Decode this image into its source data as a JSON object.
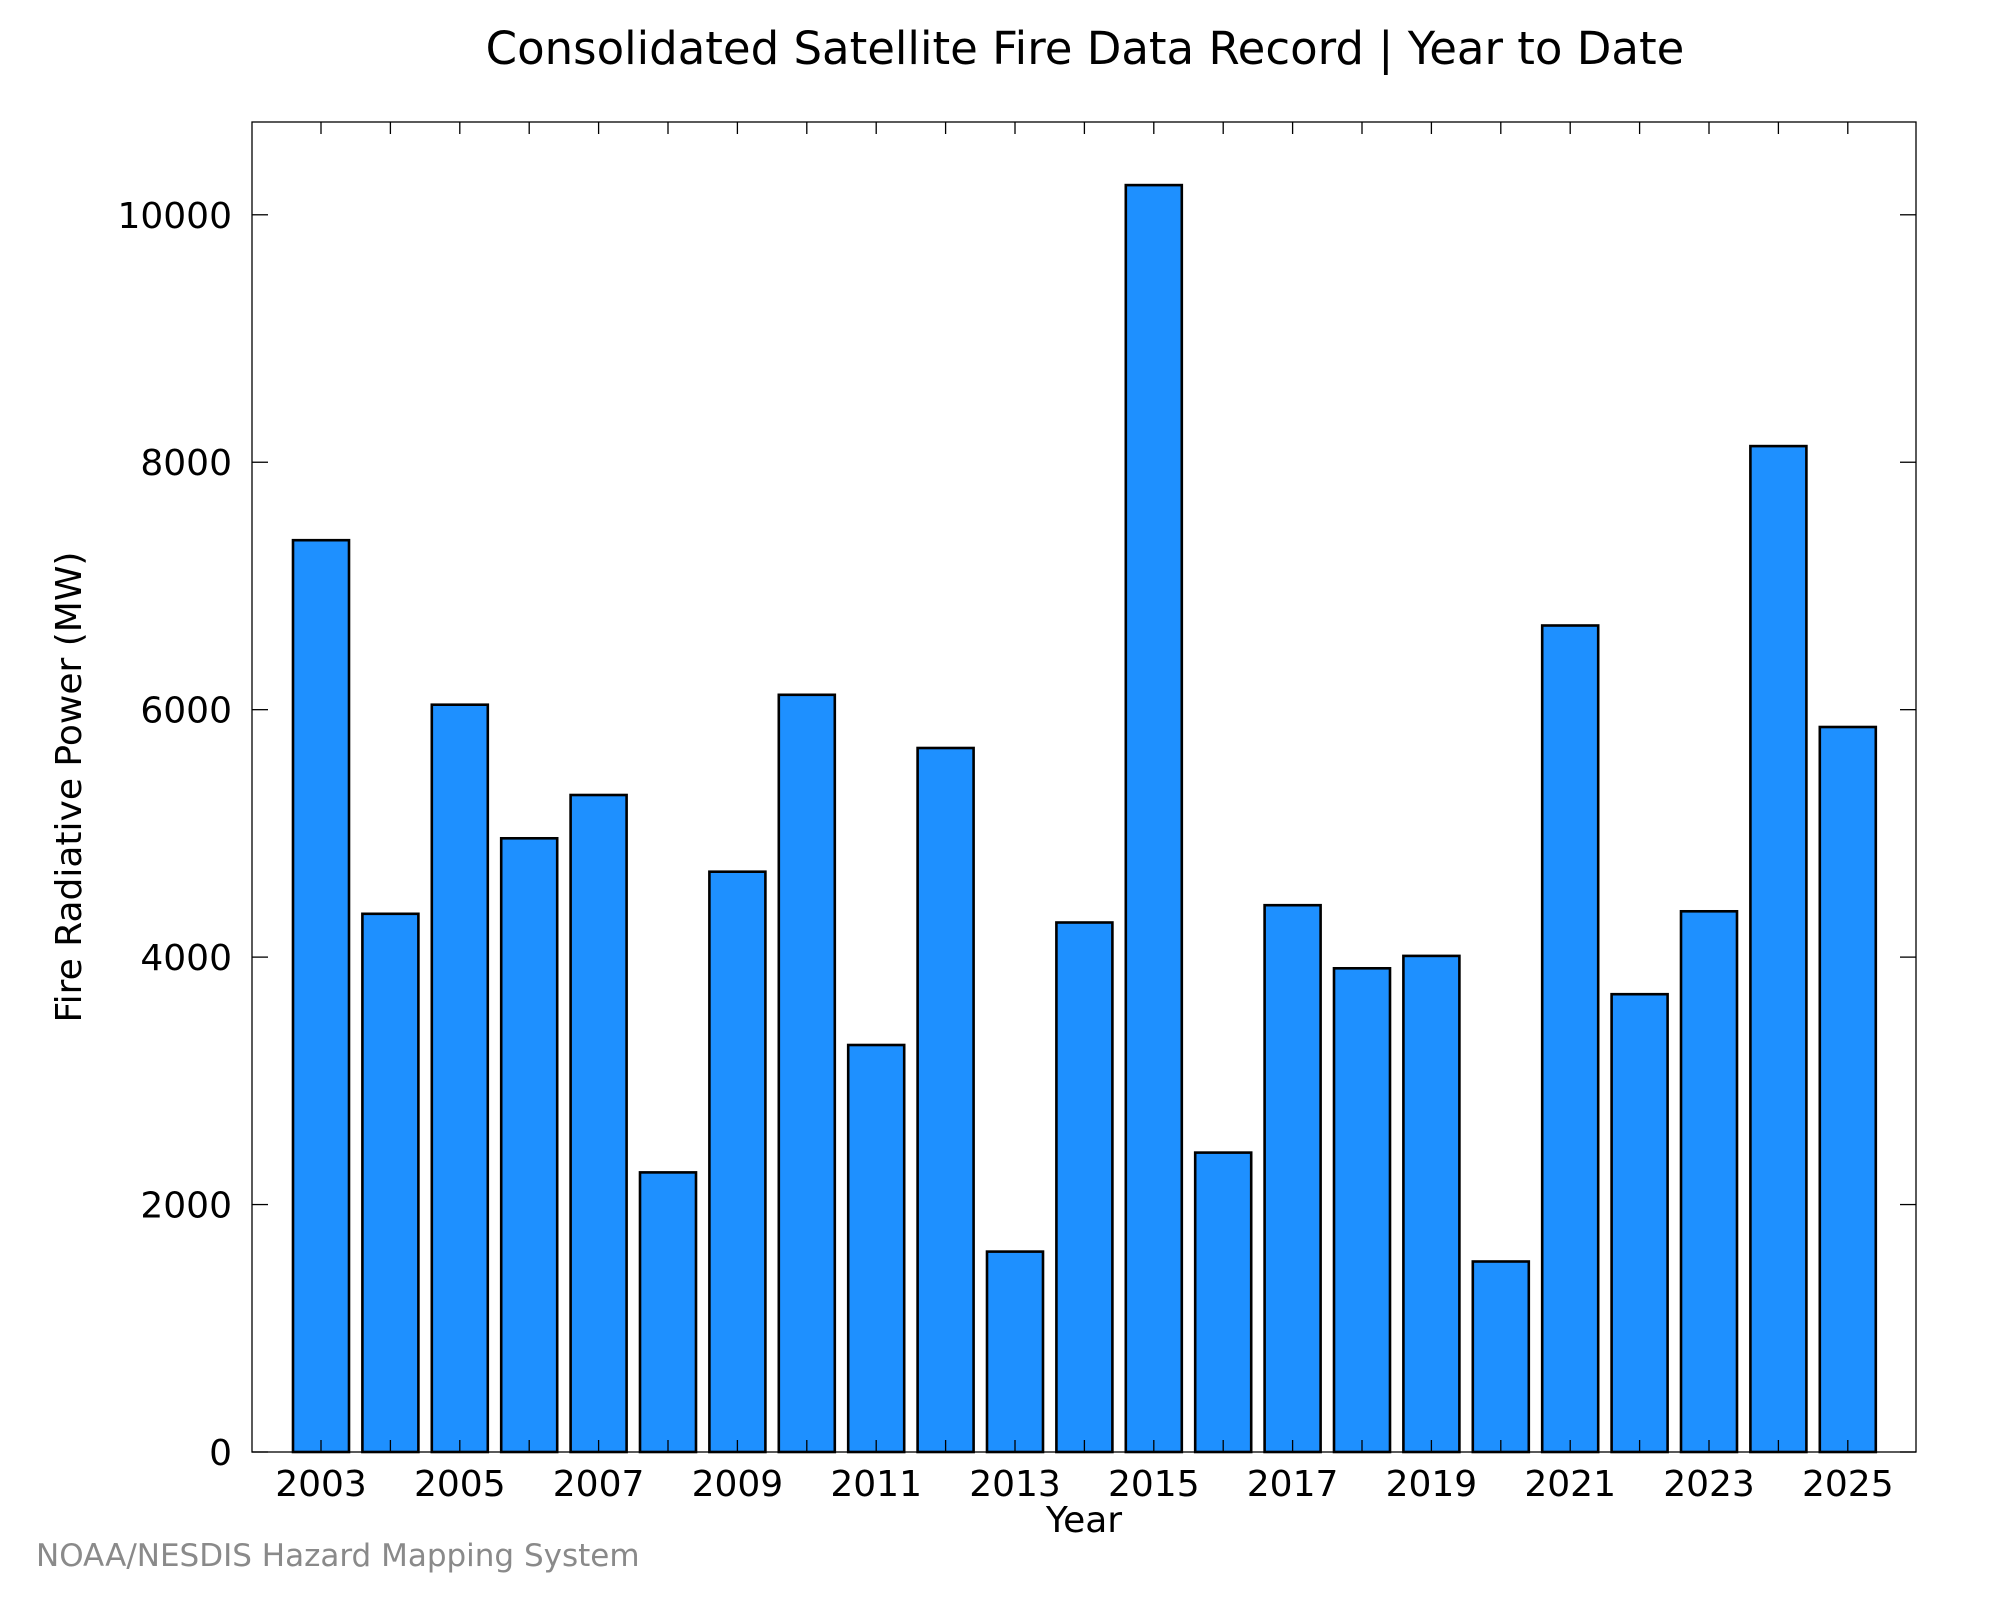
{
  "chart_data": {
    "type": "bar",
    "title": "Consolidated Satellite Fire Data Record | Year to Date",
    "xlabel": "Year",
    "ylabel": "Fire Radiative Power (MW)",
    "ylim": [
      0,
      10750
    ],
    "yticks": [
      0,
      2000,
      4000,
      6000,
      8000,
      10000
    ],
    "xtick_labels": [
      "2003",
      "2005",
      "2007",
      "2009",
      "2011",
      "2013",
      "2015",
      "2017",
      "2019",
      "2021",
      "2023",
      "2025"
    ],
    "categories": [
      "2003",
      "2004",
      "2005",
      "2006",
      "2007",
      "2008",
      "2009",
      "2010",
      "2011",
      "2012",
      "2013",
      "2014",
      "2015",
      "2016",
      "2017",
      "2018",
      "2019",
      "2020",
      "2021",
      "2022",
      "2023",
      "2024",
      "2025"
    ],
    "values": [
      7370,
      4350,
      6040,
      4960,
      5310,
      2260,
      4690,
      6120,
      3290,
      5690,
      1620,
      4280,
      10240,
      2420,
      4420,
      3910,
      4010,
      1540,
      6680,
      3700,
      4370,
      8130,
      5860
    ],
    "bar_color": "#1e90ff",
    "grid": false,
    "legend": "none"
  },
  "footer": {
    "credit": "NOAA/NESDIS Hazard Mapping System"
  }
}
